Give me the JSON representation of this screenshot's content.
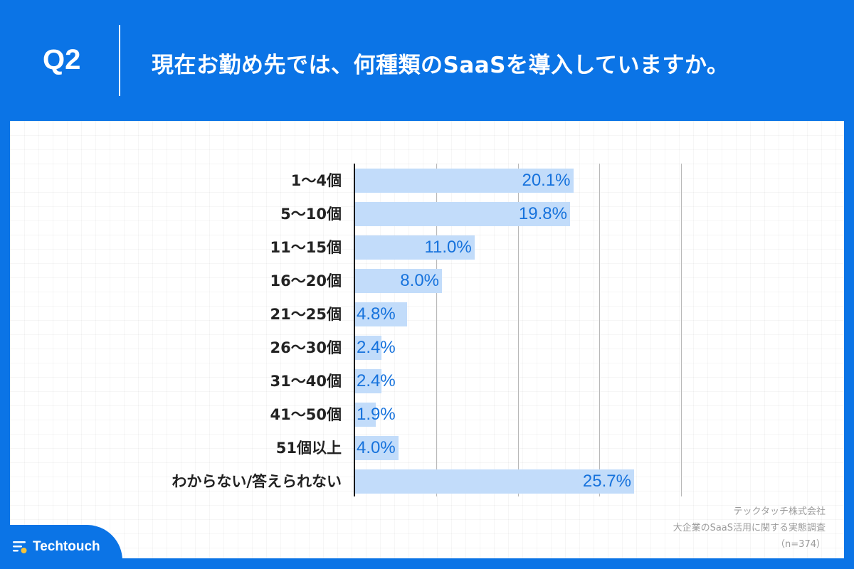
{
  "header": {
    "question_number": "Q2",
    "question_text": "現在お勤め先では、何種類のSaaSを導入していますか。"
  },
  "colors": {
    "brand_blue": "#0b74e6",
    "bar_fill": "#c2dcfa",
    "value_text": "#1672dc",
    "logo_dot": "#f5c33b"
  },
  "chart_data": {
    "type": "bar",
    "orientation": "horizontal",
    "title": "現在お勤め先では、何種類のSaaSを導入していますか。",
    "categories": [
      "1〜4個",
      "5〜10個",
      "11〜15個",
      "16〜20個",
      "21〜25個",
      "26〜30個",
      "31〜40個",
      "41〜50個",
      "51個以上",
      "わからない/答えられない"
    ],
    "values": [
      20.1,
      19.8,
      11.0,
      8.0,
      4.8,
      2.4,
      2.4,
      1.9,
      4.0,
      25.7
    ],
    "labels": [
      "20.1%",
      "19.8%",
      "11.0%",
      "8.0%",
      "4.8%",
      "2.4%",
      "2.4%",
      "1.9%",
      "4.0%",
      "25.7%"
    ],
    "unit": "%",
    "xlabel": "",
    "ylabel": "",
    "xlim": [
      0,
      30
    ],
    "gridlines": [
      7.5,
      15,
      22.5,
      30
    ],
    "grid": true,
    "legend": "none"
  },
  "source": {
    "company": "テックタッチ株式会社",
    "survey": "大企業のSaaS活用に関する実態調査",
    "sample": "（n=374）"
  },
  "logo": {
    "name": "Techtouch"
  }
}
